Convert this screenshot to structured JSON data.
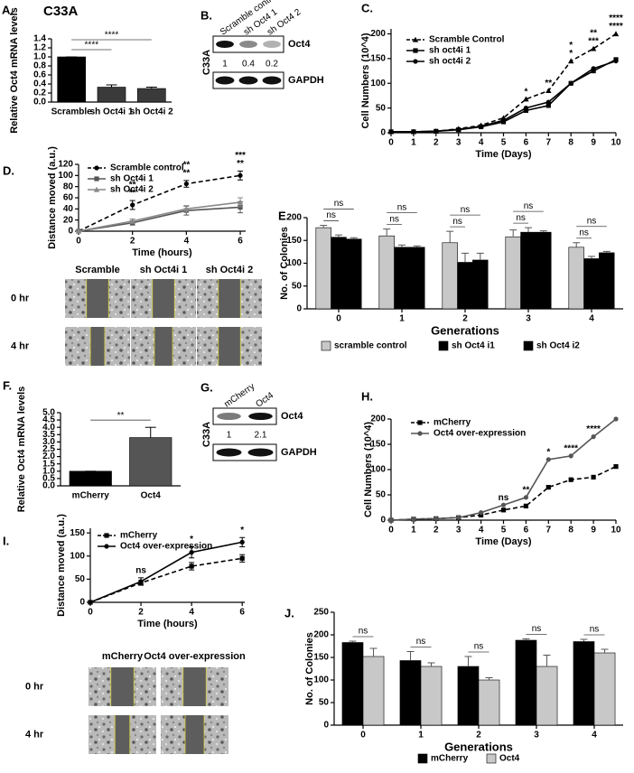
{
  "chart_data": [
    {
      "type": "bar",
      "label": "A.",
      "title": "C33A",
      "ylabel": "Relative Oct4 mRNA levels",
      "categories": [
        "Scramble",
        "sh Oct4i 1",
        "sh Oct4i 2"
      ],
      "values": [
        1.0,
        0.33,
        0.3
      ],
      "errors": [
        0,
        0.05,
        0.03
      ],
      "colors": [
        "#000000",
        "#3a3a3a",
        "#3a3a3a"
      ],
      "ylim": [
        0,
        1.4
      ],
      "yticks": [
        {
          "value": 0,
          "label": "0.0"
        },
        0.2,
        0.4,
        0.6,
        0.8,
        {
          "value": 1,
          "label": "1.0"
        },
        1.2,
        1.4
      ],
      "significance": [
        {
          "text": "****",
          "between": [
            0,
            1
          ]
        },
        {
          "text": "****",
          "between": [
            0,
            2
          ]
        }
      ]
    },
    {
      "type": "line",
      "label": "C.",
      "xlabel": "Time (Days)",
      "ylabel": "Cell Numbers (10^4)",
      "x": [
        0,
        1,
        2,
        3,
        4,
        5,
        6,
        7,
        8,
        9,
        10
      ],
      "xlim": [
        0,
        10
      ],
      "xticks": [
        0,
        1,
        2,
        3,
        4,
        5,
        6,
        7,
        8,
        9,
        10
      ],
      "ylim": [
        0,
        210
      ],
      "yticks": [
        0,
        50,
        100,
        150,
        200
      ],
      "legend": "upper left",
      "series": [
        {
          "name": "Scramble Control",
          "color": "#000000",
          "dashed": true,
          "marker": "triangle",
          "values": [
            2,
            2,
            3,
            8,
            15,
            30,
            68,
            85,
            145,
            170,
            200
          ]
        },
        {
          "name": "sh oct4i 1",
          "color": "#000000",
          "dashed": false,
          "marker": "square",
          "values": [
            2,
            2,
            3,
            6,
            12,
            22,
            45,
            55,
            100,
            125,
            148
          ]
        },
        {
          "name": "sh oct4i 2",
          "color": "#000000",
          "dashed": false,
          "marker": "circle",
          "values": [
            2,
            2,
            3,
            7,
            13,
            25,
            50,
            62,
            100,
            130,
            145
          ]
        }
      ],
      "annotations": [
        {
          "x": 6,
          "text": "*"
        },
        {
          "x": 7,
          "text": "**"
        },
        {
          "x": 8,
          "text": "*"
        },
        {
          "x": 8,
          "text": "*"
        },
        {
          "x": 9,
          "text": "***"
        },
        {
          "x": 9,
          "text": "**"
        },
        {
          "x": 10,
          "text": "****"
        },
        {
          "x": 10,
          "text": "****"
        }
      ]
    },
    {
      "type": "line",
      "label": "D.",
      "xlabel": "Time (hours)",
      "ylabel": "Distance moved (a.u.)",
      "x": [
        0,
        2,
        4,
        6
      ],
      "xlim": [
        0,
        6.2
      ],
      "xticks": [
        0,
        2,
        4,
        6
      ],
      "ylim": [
        0,
        120
      ],
      "yticks": [
        0,
        20,
        40,
        60,
        80,
        100,
        120
      ],
      "legend": "upper left",
      "series": [
        {
          "name": "Scramble control",
          "color": "#000000",
          "dashed": true,
          "marker": "circle",
          "values": [
            0,
            47,
            85,
            100
          ],
          "errors": [
            0,
            8,
            6,
            8
          ]
        },
        {
          "name": "sh Oct4i 1",
          "color": "#555555",
          "dashed": false,
          "marker": "square",
          "values": [
            0,
            15,
            37,
            43
          ],
          "errors": [
            0,
            4,
            8,
            10
          ]
        },
        {
          "name": "sh Oct4i 2",
          "color": "#888888",
          "dashed": false,
          "marker": "triangle",
          "values": [
            0,
            18,
            40,
            52
          ],
          "errors": [
            0,
            4,
            6,
            8
          ]
        }
      ],
      "annotations": [
        {
          "x": 2,
          "text": "**"
        },
        {
          "x": 2,
          "text": "**"
        },
        {
          "x": 4,
          "text": "**"
        },
        {
          "x": 4,
          "text": "**"
        },
        {
          "x": 6,
          "text": "**"
        },
        {
          "x": 6,
          "text": "***"
        }
      ]
    },
    {
      "type": "grouped_bar",
      "label": "E.",
      "xlabel": "Generations",
      "ylabel": "No. of Colonies",
      "categories": [
        "0",
        "1",
        "2",
        "3",
        "4"
      ],
      "ylim": [
        0,
        200
      ],
      "yticks": [
        0,
        50,
        100,
        150,
        200
      ],
      "legend": "bottom",
      "series": [
        {
          "name": "scramble control",
          "color": "#c8c8c8",
          "values": [
            178,
            160,
            145,
            158,
            135
          ],
          "errors": [
            5,
            15,
            25,
            15,
            10
          ]
        },
        {
          "name": "sh Oct4 i1",
          "color": "#000000",
          "values": [
            157,
            135,
            102,
            168,
            110
          ],
          "errors": [
            5,
            5,
            20,
            10,
            5
          ]
        },
        {
          "name": "sh Oct4 i2",
          "color": "#000000",
          "values": [
            153,
            135,
            107,
            168,
            123
          ],
          "errors": [
            3,
            3,
            15,
            3,
            3
          ]
        }
      ],
      "significance": [
        {
          "text": "ns",
          "group": 0,
          "between": [
            0,
            1
          ]
        },
        {
          "text": "ns",
          "group": 0,
          "between": [
            0,
            2
          ]
        },
        {
          "text": "ns",
          "group": 1,
          "between": [
            0,
            1
          ]
        },
        {
          "text": "ns",
          "group": 1,
          "between": [
            0,
            2
          ]
        },
        {
          "text": "ns",
          "group": 2,
          "between": [
            0,
            1
          ]
        },
        {
          "text": "ns",
          "group": 2,
          "between": [
            0,
            2
          ]
        },
        {
          "text": "ns",
          "group": 3,
          "between": [
            0,
            1
          ]
        },
        {
          "text": "ns",
          "group": 3,
          "between": [
            0,
            2
          ]
        },
        {
          "text": "ns",
          "group": 4,
          "between": [
            0,
            1
          ]
        },
        {
          "text": "ns",
          "group": 4,
          "between": [
            0,
            2
          ]
        }
      ]
    },
    {
      "type": "bar",
      "label": "F.",
      "ylabel": "Relative Oct4 mRNA levels",
      "categories": [
        "mCherry",
        "Oct4"
      ],
      "values": [
        1.0,
        3.3
      ],
      "errors": [
        0,
        0.7
      ],
      "colors": [
        "#000000",
        "#555555"
      ],
      "ylim": [
        0,
        5
      ],
      "yticks": [
        {
          "value": 0,
          "label": "0.0"
        },
        0.5,
        {
          "value": 1,
          "label": "1.0"
        },
        1.5,
        {
          "value": 2,
          "label": "2.0"
        },
        2.5,
        {
          "value": 3,
          "label": "3.0"
        },
        3.5,
        {
          "value": 4,
          "label": "4.0"
        },
        4.5,
        {
          "value": 5,
          "label": "5.0"
        }
      ],
      "significance": [
        {
          "text": "**",
          "between": [
            0,
            1
          ]
        }
      ]
    },
    {
      "type": "line",
      "label": "H.",
      "xlabel": "Time (Days)",
      "ylabel": "Cell Numbers (10^4)",
      "x": [
        0,
        1,
        2,
        3,
        4,
        5,
        6,
        7,
        8,
        9,
        10
      ],
      "xlim": [
        0,
        10
      ],
      "xticks": [
        0,
        1,
        2,
        3,
        4,
        5,
        6,
        7,
        8,
        9,
        10
      ],
      "ylim": [
        0,
        200
      ],
      "yticks": [
        0,
        50,
        100,
        150,
        200
      ],
      "legend": "upper left",
      "series": [
        {
          "name": "mCherry",
          "color": "#000000",
          "dashed": true,
          "marker": "square",
          "values": [
            0,
            2,
            3,
            5,
            10,
            20,
            28,
            65,
            80,
            85,
            106
          ]
        },
        {
          "name": "Oct4 over-expression",
          "color": "#555555",
          "dashed": false,
          "marker": "circle",
          "values": [
            0,
            2,
            3,
            5,
            15,
            30,
            45,
            120,
            127,
            165,
            200
          ]
        }
      ],
      "annotations": [
        {
          "x": 5,
          "text": "ns"
        },
        {
          "x": 6,
          "text": "**"
        },
        {
          "x": 7,
          "text": "*"
        },
        {
          "x": 8,
          "text": "****"
        },
        {
          "x": 9,
          "text": "****"
        }
      ]
    },
    {
      "type": "line",
      "label": "I.",
      "xlabel": "Time (hours)",
      "ylabel": "Distance moved (a.u.)",
      "x": [
        0,
        2,
        4,
        6
      ],
      "xlim": [
        0,
        6.1
      ],
      "xticks": [
        0,
        2,
        4,
        6
      ],
      "ylim": [
        0,
        160
      ],
      "yticks": [
        0,
        50,
        100,
        150
      ],
      "legend": "upper left",
      "series": [
        {
          "name": "mCherry",
          "color": "#000000",
          "dashed": true,
          "marker": "square",
          "values": [
            0,
            42,
            78,
            95
          ],
          "errors": [
            0,
            5,
            8,
            8
          ]
        },
        {
          "name": "Oct4 over-expression",
          "color": "#000000",
          "dashed": false,
          "marker": "circle",
          "values": [
            0,
            45,
            108,
            130
          ],
          "errors": [
            0,
            8,
            12,
            10
          ]
        }
      ],
      "annotations": [
        {
          "x": 2,
          "text": "ns"
        },
        {
          "x": 4,
          "text": "*"
        },
        {
          "x": 6,
          "text": "*"
        }
      ]
    },
    {
      "type": "grouped_bar",
      "label": "J.",
      "xlabel": "Generations",
      "ylabel": "No. of Colonies",
      "categories": [
        "0",
        "1",
        "2",
        "3",
        "4"
      ],
      "ylim": [
        0,
        250
      ],
      "yticks": [
        0,
        50,
        100,
        150,
        200,
        250
      ],
      "legend": "bottom",
      "series": [
        {
          "name": "mCherry",
          "color": "#000000",
          "values": [
            183,
            143,
            130,
            188,
            185
          ],
          "errors": [
            3,
            20,
            22,
            3,
            5
          ]
        },
        {
          "name": "Oct4",
          "color": "#c8c8c8",
          "values": [
            152,
            130,
            100,
            130,
            160
          ],
          "errors": [
            18,
            8,
            5,
            25,
            8
          ]
        }
      ],
      "significance": [
        {
          "text": "ns",
          "group": 0,
          "between": [
            0,
            1
          ]
        },
        {
          "text": "ns",
          "group": 1,
          "between": [
            0,
            1
          ]
        },
        {
          "text": "ns",
          "group": 2,
          "between": [
            0,
            1
          ]
        },
        {
          "text": "ns",
          "group": 3,
          "between": [
            0,
            1
          ]
        },
        {
          "text": "ns",
          "group": 4,
          "between": [
            0,
            1
          ]
        }
      ]
    }
  ],
  "blots": [
    {
      "label": "B.",
      "cell_line": "C33A",
      "lanes": [
        "Scramble control",
        "sh Oct4 1",
        "sh Oct4 2"
      ],
      "proteins": [
        "Oct4",
        "GAPDH"
      ],
      "quantification": [
        1,
        0.4,
        0.2
      ]
    },
    {
      "label": "G.",
      "cell_line": "C33A",
      "lanes": [
        "mCherry",
        "Oct4"
      ],
      "proteins": [
        "Oct4",
        "GAPDH"
      ],
      "quantification": [
        1,
        2.1
      ]
    }
  ],
  "micrographs": [
    {
      "columns": [
        "Scramble",
        "sh Oct4i 1",
        "sh Oct4i 2"
      ],
      "rows": [
        "0 hr",
        "4 hr"
      ]
    },
    {
      "columns": [
        "mCherry",
        "Oct4 over-expression"
      ],
      "rows": [
        "0 hr",
        "4 hr"
      ]
    }
  ]
}
